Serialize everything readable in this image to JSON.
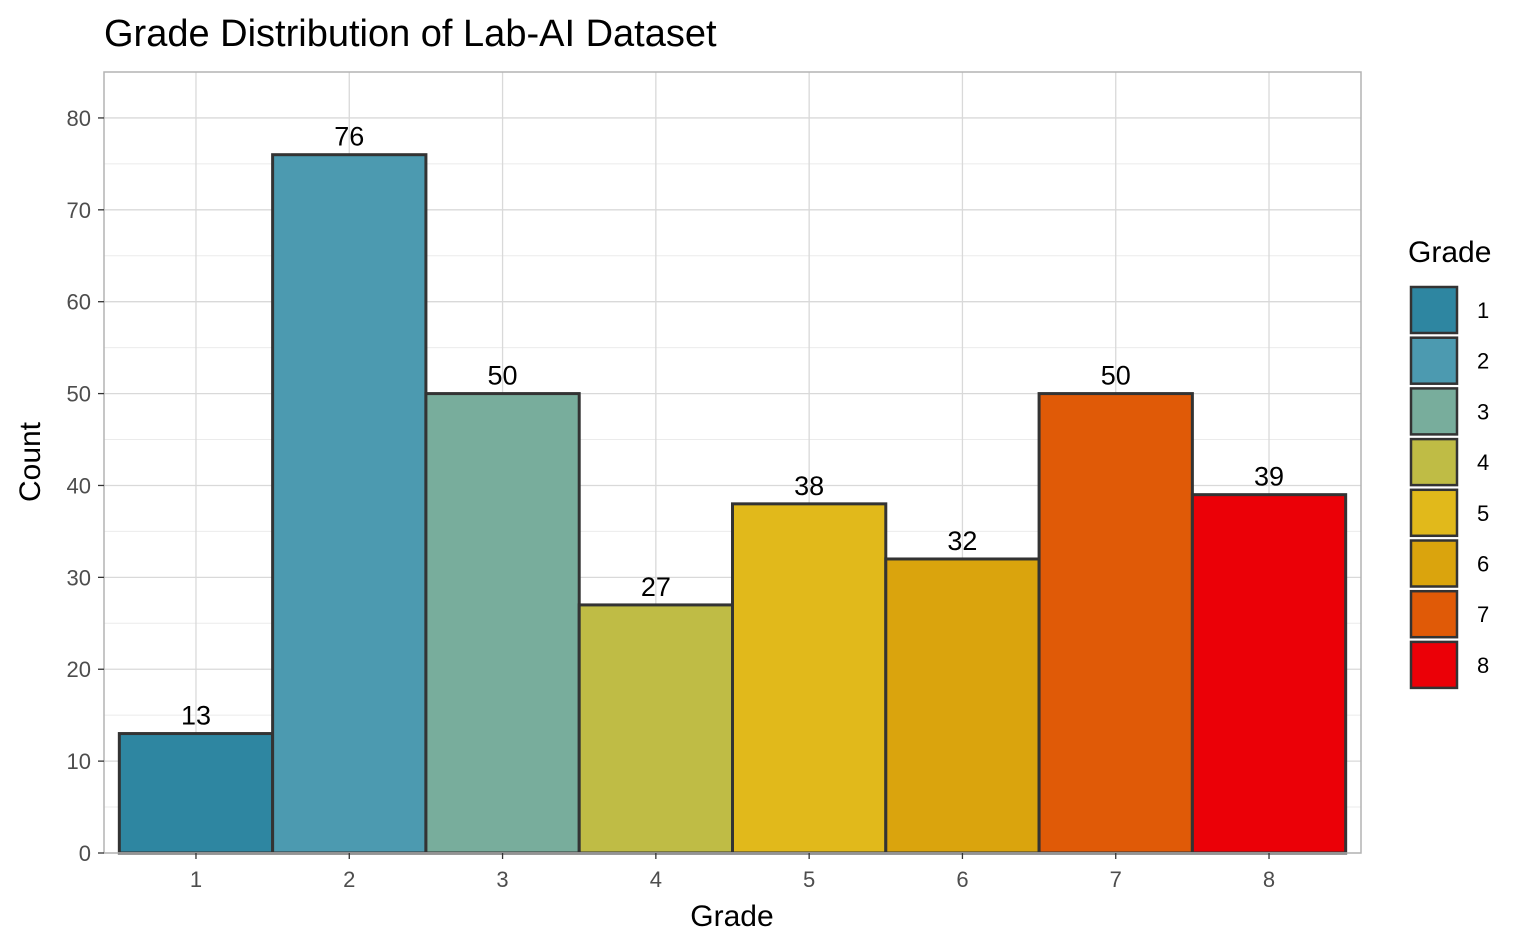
{
  "chart_data": {
    "type": "bar",
    "title": "Grade Distribution of Lab-AI Dataset",
    "xlabel": "Grade",
    "ylabel": "Count",
    "categories": [
      "1",
      "2",
      "3",
      "4",
      "5",
      "6",
      "7",
      "8"
    ],
    "values": [
      13,
      76,
      50,
      27,
      38,
      32,
      50,
      39
    ],
    "colors": [
      "#2e86a1",
      "#4c9ab0",
      "#78ad9c",
      "#bfbc45",
      "#e1b91b",
      "#daa40d",
      "#e05a07",
      "#eb0007"
    ],
    "ylim": [
      0,
      85
    ],
    "yticks": [
      0,
      10,
      20,
      30,
      40,
      50,
      60,
      70,
      80
    ],
    "grid": true,
    "legend": {
      "title": "Grade",
      "position": "right",
      "entries": [
        "1",
        "2",
        "3",
        "4",
        "5",
        "6",
        "7",
        "8"
      ]
    }
  }
}
